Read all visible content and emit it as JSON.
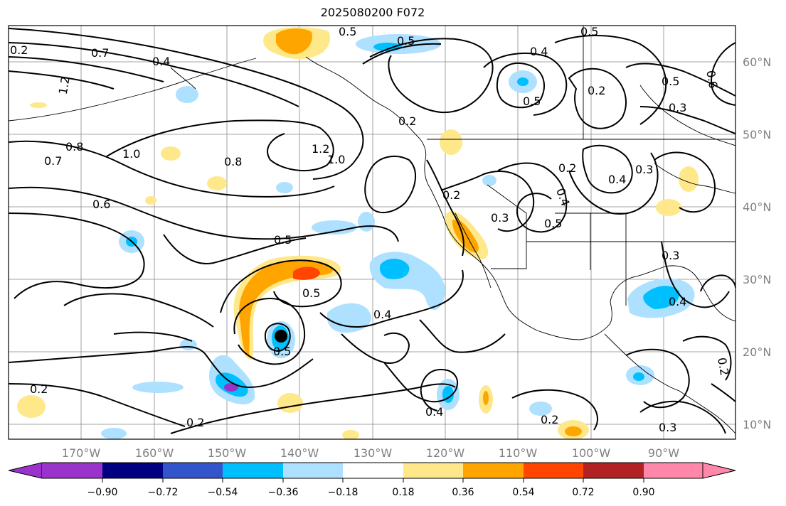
{
  "title": "2025080200 F072",
  "longitude_labels": [
    "170°W",
    "160°W",
    "150°W",
    "140°W",
    "130°W",
    "120°W",
    "110°W",
    "100°W",
    "90°W"
  ],
  "latitude_labels": [
    "60°N",
    "50°N",
    "40°N",
    "30°N",
    "20°N",
    "10°N"
  ],
  "colorbar": {
    "tick_labels": [
      "−0.90",
      "−0.72",
      "−0.54",
      "−0.36",
      "−0.18",
      "0.18",
      "0.36",
      "0.54",
      "0.72",
      "0.90"
    ],
    "colors": [
      "#9933cc",
      "#000080",
      "#3355cc",
      "#00bfff",
      "#aee0ff",
      "#ffffff",
      "#ffe88a",
      "#ffa500",
      "#ff4500",
      "#b22222",
      "#ff88aa"
    ]
  },
  "contour_labels": [
    "0.2",
    "0.3",
    "0.4",
    "0.5",
    "0.6",
    "0.7",
    "0.8",
    "0.9",
    "1.0",
    "1.2"
  ],
  "storm_marker": "black dot"
}
